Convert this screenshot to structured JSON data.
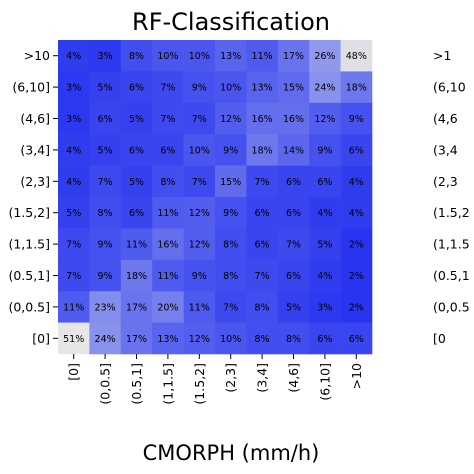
{
  "chart_data": {
    "type": "heatmap",
    "title": "RF-Classification",
    "xlabel": "CMORPH (mm/h)",
    "ylabel": "",
    "x_categories": [
      "[0]",
      "(0,0.5]",
      "(0.5,1]",
      "(1,1.5]",
      "(1.5,2]",
      "(2,3]",
      "(3,4]",
      "(4,6]",
      "(6,10]",
      ">10"
    ],
    "y_categories_top_to_bottom": [
      ">10",
      "(6,10]",
      "(4,6]",
      "(3,4]",
      "(2,3]",
      "(1.5,2]",
      "(1,1.5]",
      "(0.5,1]",
      "(0,0.5]",
      "[0]"
    ],
    "values_percent": [
      [
        4,
        3,
        8,
        10,
        10,
        13,
        11,
        17,
        26,
        48
      ],
      [
        3,
        5,
        6,
        7,
        9,
        10,
        13,
        15,
        24,
        18
      ],
      [
        3,
        6,
        5,
        7,
        7,
        12,
        16,
        16,
        12,
        9
      ],
      [
        4,
        5,
        6,
        6,
        10,
        9,
        18,
        14,
        9,
        6
      ],
      [
        4,
        7,
        5,
        8,
        7,
        15,
        7,
        6,
        6,
        4
      ],
      [
        5,
        8,
        6,
        11,
        12,
        9,
        6,
        6,
        4,
        4
      ],
      [
        7,
        9,
        11,
        16,
        12,
        8,
        6,
        7,
        5,
        2
      ],
      [
        7,
        9,
        18,
        11,
        9,
        8,
        7,
        6,
        4,
        2
      ],
      [
        11,
        23,
        17,
        20,
        11,
        7,
        8,
        5,
        3,
        2
      ],
      [
        51,
        24,
        17,
        13,
        12,
        10,
        8,
        8,
        6,
        6
      ]
    ],
    "value_format": "{v}%",
    "colormap": {
      "low": "#1f2cf0",
      "mid": "#8c95ec",
      "high": "#e6e6e6",
      "vmax": 50
    },
    "grid": false,
    "legend": "none",
    "cropped_neighbor_panel_labels": [
      ">1",
      "(6,10",
      "(4,6",
      "(3,4",
      "(2,3",
      "(1.5,2",
      "(1,1.5",
      "(0.5,1",
      "(0,0.5",
      "[0"
    ]
  }
}
